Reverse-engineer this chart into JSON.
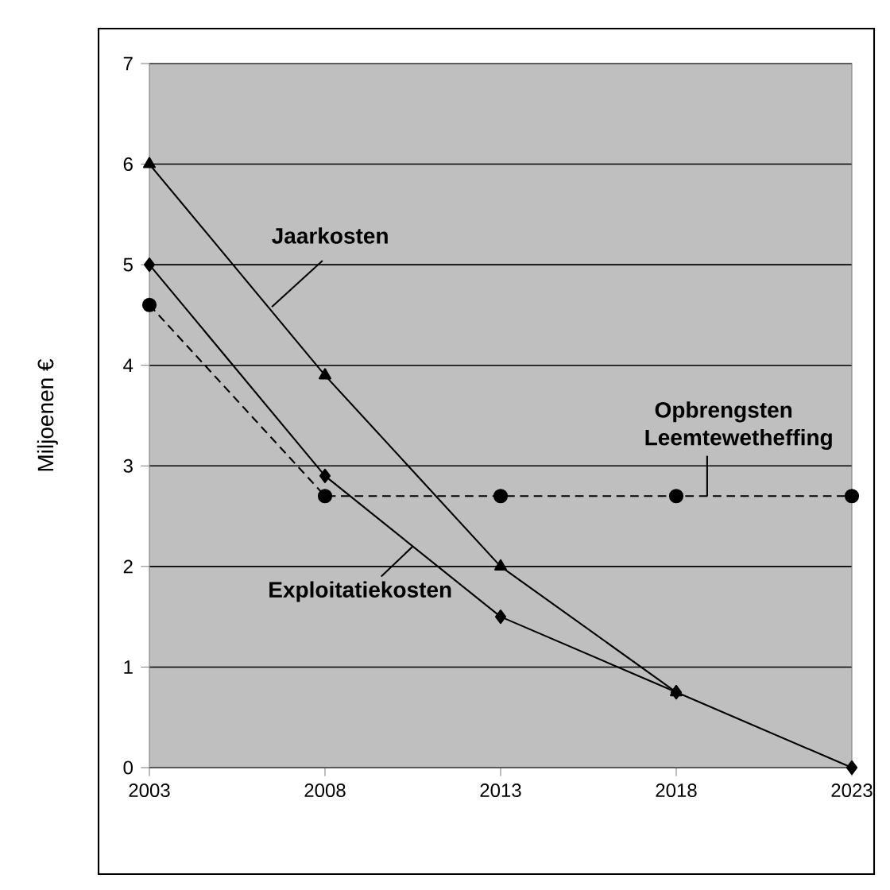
{
  "chart_data": {
    "type": "line",
    "ylabel": "Miljoenen €",
    "categories": [
      "2003",
      "2008",
      "2013",
      "2018",
      "2023"
    ],
    "series": [
      {
        "name": "Jaarkosten",
        "color": "#000000",
        "marker": "triangle",
        "line_style": "solid",
        "values": [
          6,
          3.9,
          2.0,
          0.75,
          null
        ]
      },
      {
        "name": "Exploitatiekosten",
        "color": "#000000",
        "marker": "diamond",
        "line_style": "solid",
        "values": [
          5,
          2.9,
          1.5,
          0.75,
          0
        ]
      },
      {
        "name": "Opbrengsten Leemtewetheffing",
        "color": "#000000",
        "marker": "circle",
        "line_style": "dashed",
        "values": [
          4.6,
          2.7,
          2.7,
          2.7,
          2.7
        ]
      }
    ],
    "ylim": [
      0,
      7
    ],
    "yticks": [
      0,
      1,
      2,
      3,
      4,
      5,
      6,
      7
    ],
    "grid": "y"
  }
}
